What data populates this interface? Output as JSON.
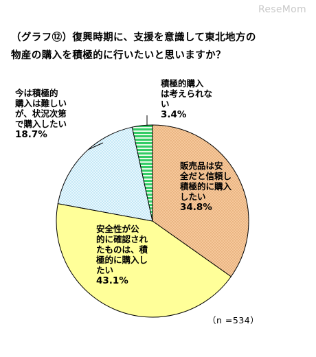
{
  "logo_text": "ReseMom",
  "chart_data": {
    "type": "pie",
    "title": "（グラフ⑫）復興時期に、支援を意識して東北地方の\n物産の購入を積極的に行いたいと思いますか？",
    "note": "（n =534）",
    "slices": [
      {
        "label": "販売品は安\n全だと信頼し\n積極的に購入\nしたい",
        "value": 34.8,
        "value_text": "34.8%",
        "color": "#f6c89b",
        "pattern": "dots"
      },
      {
        "label": "安全性が公\n的に確認され\nたものは、積\n極的に購入し\nたい",
        "value": 43.1,
        "value_text": "43.1%",
        "color": "#ffff99",
        "pattern": "none"
      },
      {
        "label": "今は積極的\n購入は難しい\nが、状況次第\nで購入したい",
        "value": 18.7,
        "value_text": "18.7%",
        "color": "#dff2fb",
        "pattern": "dots"
      },
      {
        "label": "積極的購入\nは考えられな\nい",
        "value": 3.4,
        "value_text": "3.4%",
        "color": "#33cc66",
        "pattern": "stripes"
      }
    ]
  }
}
